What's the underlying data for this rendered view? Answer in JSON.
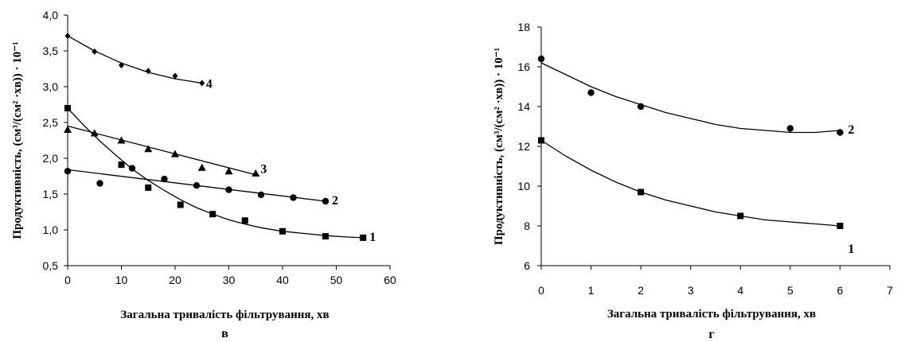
{
  "chart_data": [
    {
      "type": "scatter",
      "panel_label": "в",
      "xlabel": "Загальна тривалість фільтрування, хв",
      "ylabel": "Продуктивність, (см³/(см² ·хв)) · 10⁻¹",
      "xlim": [
        0,
        60
      ],
      "ylim": [
        0.5,
        4.0
      ],
      "xticks": [
        "0",
        "10",
        "20",
        "30",
        "40",
        "50",
        "60"
      ],
      "yticks": [
        "0,5",
        "1,0",
        "1,5",
        "2,0",
        "2,5",
        "3,0",
        "3,5",
        "4,0"
      ],
      "grid": false,
      "series": [
        {
          "name": "1",
          "marker": "square",
          "points": [
            [
              0,
              2.7
            ],
            [
              10,
              1.91
            ],
            [
              15,
              1.59
            ],
            [
              21,
              1.35
            ],
            [
              27,
              1.22
            ],
            [
              33,
              1.13
            ],
            [
              40,
              0.98
            ],
            [
              48,
              0.91
            ],
            [
              55,
              0.89
            ]
          ],
          "trend": [
            [
              0,
              2.7
            ],
            [
              3,
              2.46
            ],
            [
              6,
              2.24
            ],
            [
              9,
              2.04
            ],
            [
              12,
              1.85
            ],
            [
              15,
              1.69
            ],
            [
              18,
              1.55
            ],
            [
              21,
              1.42
            ],
            [
              24,
              1.31
            ],
            [
              27,
              1.22
            ],
            [
              30,
              1.14
            ],
            [
              33,
              1.08
            ],
            [
              36,
              1.03
            ],
            [
              40,
              0.98
            ],
            [
              44,
              0.95
            ],
            [
              48,
              0.92
            ],
            [
              52,
              0.9
            ],
            [
              55,
              0.89
            ]
          ]
        },
        {
          "name": "2",
          "marker": "circle",
          "points": [
            [
              0,
              1.82
            ],
            [
              6,
              1.65
            ],
            [
              12,
              1.86
            ],
            [
              18,
              1.71
            ],
            [
              24,
              1.62
            ],
            [
              30,
              1.56
            ],
            [
              36,
              1.49
            ],
            [
              42,
              1.45
            ],
            [
              48,
              1.4
            ]
          ],
          "trend": [
            [
              0,
              1.84
            ],
            [
              48,
              1.4
            ]
          ]
        },
        {
          "name": "3",
          "marker": "triangle",
          "points": [
            [
              0,
              2.4
            ],
            [
              5,
              2.35
            ],
            [
              10,
              2.25
            ],
            [
              15,
              2.13
            ],
            [
              20,
              2.06
            ],
            [
              25,
              1.87
            ],
            [
              30,
              1.82
            ],
            [
              35,
              1.79
            ]
          ],
          "trend": [
            [
              0,
              2.45
            ],
            [
              35,
              1.77
            ]
          ]
        },
        {
          "name": "4",
          "marker": "diamond",
          "points": [
            [
              0,
              3.71
            ],
            [
              5,
              3.49
            ],
            [
              10,
              3.3
            ],
            [
              15,
              3.22
            ],
            [
              20,
              3.15
            ],
            [
              25,
              3.05
            ]
          ],
          "trend": [
            [
              0,
              3.71
            ],
            [
              5,
              3.5
            ],
            [
              10,
              3.33
            ],
            [
              15,
              3.2
            ],
            [
              20,
              3.11
            ],
            [
              25,
              3.05
            ]
          ]
        }
      ]
    },
    {
      "type": "scatter",
      "panel_label": "г",
      "xlabel": "Загальна тривалість фільтрування, хв",
      "ylabel": "Продуктивність, (см³/(см² ·хв)) · 10⁻¹",
      "xlim": [
        0,
        7
      ],
      "ylim": [
        6,
        18
      ],
      "xticks": [
        "0",
        "1",
        "2",
        "3",
        "4",
        "5",
        "6",
        "7"
      ],
      "yticks": [
        "6",
        "8",
        "10",
        "12",
        "14",
        "16",
        "18"
      ],
      "grid": false,
      "series": [
        {
          "name": "1",
          "marker": "square",
          "points": [
            [
              0,
              12.3
            ],
            [
              2,
              9.7
            ],
            [
              4,
              8.5
            ],
            [
              6,
              8.0
            ]
          ],
          "trend": [
            [
              0,
              12.3
            ],
            [
              0.5,
              11.5
            ],
            [
              1,
              10.8
            ],
            [
              1.5,
              10.2
            ],
            [
              2,
              9.7
            ],
            [
              2.5,
              9.3
            ],
            [
              3,
              9.0
            ],
            [
              3.5,
              8.7
            ],
            [
              4,
              8.5
            ],
            [
              4.5,
              8.3
            ],
            [
              5,
              8.2
            ],
            [
              5.5,
              8.1
            ],
            [
              6,
              8.0
            ]
          ]
        },
        {
          "name": "2",
          "marker": "circle",
          "points": [
            [
              0,
              16.4
            ],
            [
              1,
              14.7
            ],
            [
              2,
              14.0
            ],
            [
              5,
              12.9
            ],
            [
              6,
              12.7
            ]
          ],
          "trend": [
            [
              0,
              16.2
            ],
            [
              0.5,
              15.6
            ],
            [
              1,
              15.0
            ],
            [
              1.5,
              14.5
            ],
            [
              2,
              14.1
            ],
            [
              2.5,
              13.7
            ],
            [
              3,
              13.4
            ],
            [
              3.5,
              13.1
            ],
            [
              4,
              12.9
            ],
            [
              4.5,
              12.8
            ],
            [
              5,
              12.7
            ],
            [
              5.5,
              12.7
            ],
            [
              6,
              12.8
            ]
          ]
        }
      ]
    }
  ]
}
